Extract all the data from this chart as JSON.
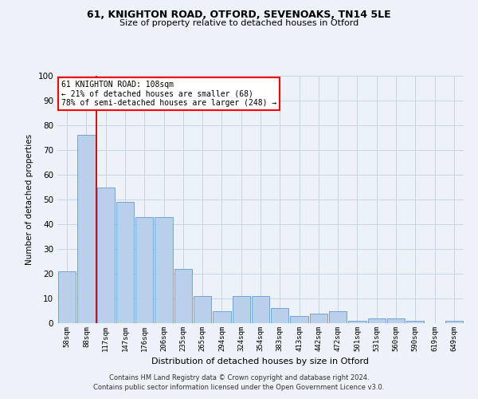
{
  "title1": "61, KNIGHTON ROAD, OTFORD, SEVENOAKS, TN14 5LE",
  "title2": "Size of property relative to detached houses in Otford",
  "xlabel": "Distribution of detached houses by size in Otford",
  "ylabel": "Number of detached properties",
  "categories": [
    "58sqm",
    "88sqm",
    "117sqm",
    "147sqm",
    "176sqm",
    "206sqm",
    "235sqm",
    "265sqm",
    "294sqm",
    "324sqm",
    "354sqm",
    "383sqm",
    "413sqm",
    "442sqm",
    "472sqm",
    "501sqm",
    "531sqm",
    "560sqm",
    "590sqm",
    "619sqm",
    "649sqm"
  ],
  "values": [
    21,
    76,
    55,
    49,
    43,
    43,
    22,
    11,
    5,
    11,
    11,
    6,
    3,
    4,
    5,
    1,
    2,
    2,
    1,
    0,
    1
  ],
  "bar_color": "#b8d0ea",
  "bar_edge_color": "#6699cc",
  "property_line_x": 1.5,
  "annotation_text": "61 KNIGHTON ROAD: 108sqm\n← 21% of detached houses are smaller (68)\n78% of semi-detached houses are larger (248) →",
  "annotation_box_color": "white",
  "annotation_box_edge_color": "red",
  "red_line_color": "#cc0000",
  "grid_color": "#c8d4e8",
  "background_color": "#edf2f9",
  "ylim": [
    0,
    100
  ],
  "footer1": "Contains HM Land Registry data © Crown copyright and database right 2024.",
  "footer2": "Contains public sector information licensed under the Open Government Licence v3.0."
}
